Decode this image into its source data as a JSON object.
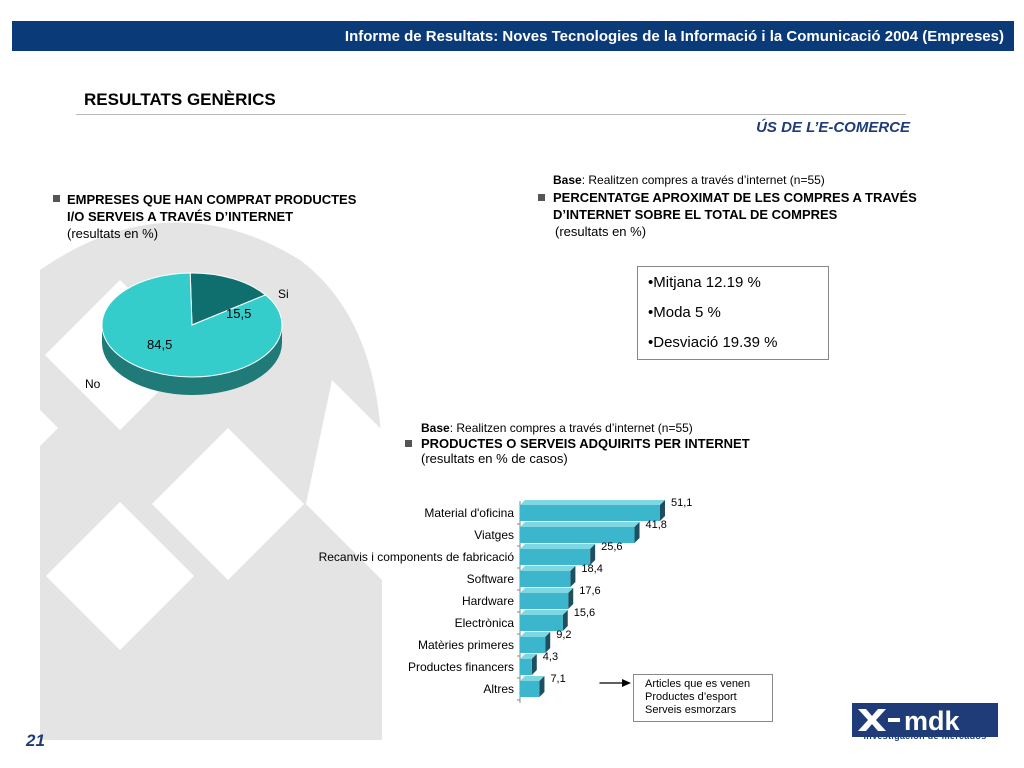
{
  "header": {
    "title": "Informe de Resultats: Noves Tecnologies de la Informació i la Comunicació 2004 (Empreses)"
  },
  "section": {
    "title": "RESULTATS GENÈRICS",
    "subtitle": "ÚS DE L’E-COMERCE"
  },
  "left_block": {
    "title_line1": "EMPRESES QUE HAN COMPRAT PRODUCTES",
    "title_line2": "I/O SERVEIS A TRAVÉS D’INTERNET",
    "note": "(resultats en %)"
  },
  "right_top_block": {
    "base_bold": "Base",
    "base_text": ": Realitzen compres a través d’internet (n=55)",
    "title_line1": "PERCENTATGE APROXIMAT DE LES COMPRES A TRAVÉS",
    "title_line2": "D’INTERNET SOBRE EL TOTAL DE COMPRES",
    "note": "(resultats en %)"
  },
  "stats": {
    "mitjana": "•Mitjana 12.19 %",
    "moda": "•Moda 5 %",
    "desviacio": "•Desviació 19.39 %"
  },
  "right_bottom_block": {
    "base_bold": "Base",
    "base_text": ": Realitzen compres a través d’internet (n=55)",
    "title": "PRODUCTES O SERVEIS ADQUIRITS PER INTERNET",
    "note": "(resultats en % de casos)"
  },
  "annotation": {
    "line1": "Articles que es venen",
    "line2": "Productes d’esport",
    "line3": "Serveis esmorzars"
  },
  "footer": {
    "page_number": "21",
    "logo_sub": "investigación de mercados"
  },
  "colors": {
    "teal": "#35cccc",
    "dark_teal": "#0f6e6e",
    "navy": "#0a3a78",
    "bar": "#3cb6cc"
  },
  "chart_data": [
    {
      "type": "pie",
      "categories": [
        "Si",
        "No"
      ],
      "values": [
        15.5,
        84.5
      ],
      "value_labels": [
        "15,5",
        "84,5"
      ]
    },
    {
      "type": "bar",
      "orientation": "horizontal",
      "categories": [
        "Material d'oficina",
        "Viatges",
        "Recanvis i components de fabricació",
        "Software",
        "Hardware",
        "Electrònica",
        "Matèries primeres",
        "Productes financers",
        "Altres"
      ],
      "values": [
        51.1,
        41.8,
        25.6,
        18.4,
        17.6,
        15.6,
        9.2,
        4.3,
        7.1
      ],
      "value_labels": [
        "51,1",
        "41,8",
        "25,6",
        "18,4",
        "17,6",
        "15,6",
        "9,2",
        "4,3",
        "7,1"
      ]
    }
  ]
}
